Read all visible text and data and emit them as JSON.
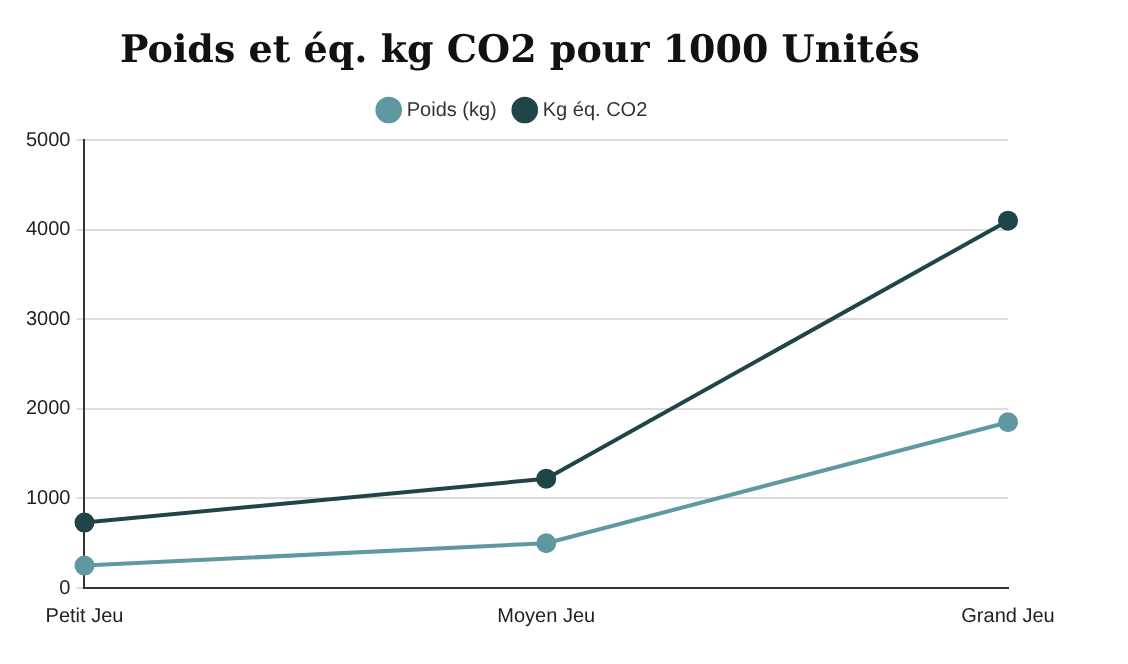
{
  "chart_data": {
    "type": "line",
    "title": "Poids et éq. kg CO2 pour 1000 Unités",
    "categories": [
      "Petit Jeu",
      "Moyen Jeu",
      "Grand Jeu"
    ],
    "series": [
      {
        "name": "Poids (kg)",
        "color": "#5f98a0",
        "values": [
          250,
          500,
          1850
        ]
      },
      {
        "name": "Kg éq. CO2",
        "color": "#1f4548",
        "values": [
          730,
          1220,
          4100
        ]
      }
    ],
    "ylim": [
      0,
      5000
    ],
    "yticks": [
      0,
      1000,
      2000,
      3000,
      4000,
      5000
    ],
    "grid": "y",
    "legend": "top",
    "marker": "circle",
    "line_style": "solid"
  }
}
